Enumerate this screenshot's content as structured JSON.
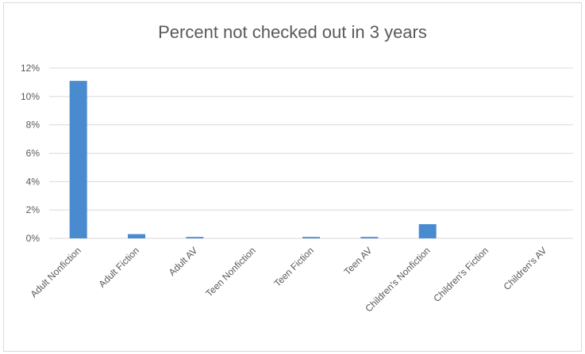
{
  "chart_data": {
    "type": "bar",
    "title": "Percent not checked out in 3 years",
    "xlabel": "",
    "ylabel": "",
    "categories": [
      "Adult Nonfiction",
      "Adult Fiction",
      "Adult AV",
      "Teen Nonfiction",
      "Teen Fiction",
      "Teen AV",
      "Children's Nonfiction",
      "Children's Fiction",
      "Children's AV"
    ],
    "values": [
      11.1,
      0.3,
      0.1,
      0.0,
      0.1,
      0.1,
      1.0,
      0.0,
      0.0
    ],
    "value_format": "percent",
    "ylim": [
      0,
      12
    ],
    "yticks": [
      0,
      2,
      4,
      6,
      8,
      10,
      12
    ],
    "ytick_labels": [
      "0%",
      "2%",
      "4%",
      "6%",
      "8%",
      "10%",
      "12%"
    ],
    "grid": true,
    "legend": "none",
    "colors": {
      "bar": "#4a8bd0",
      "grid": "#d9d9d9",
      "text": "#595959"
    }
  }
}
